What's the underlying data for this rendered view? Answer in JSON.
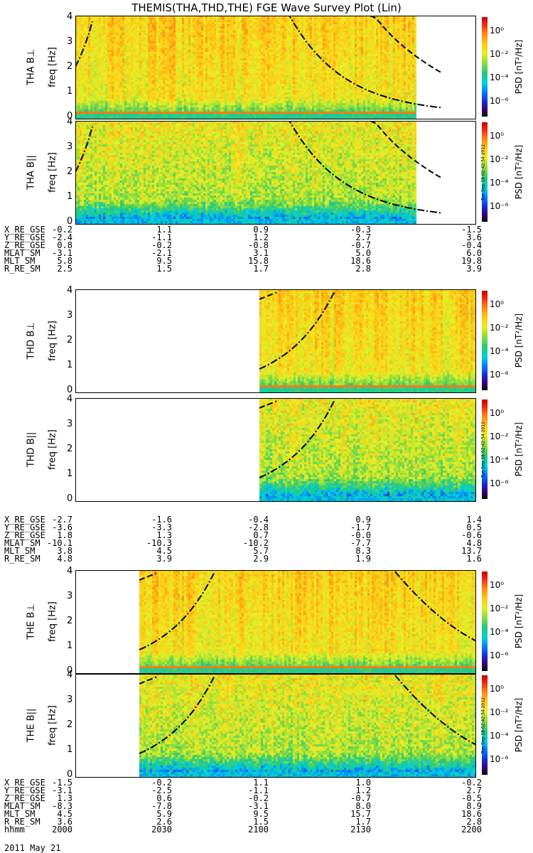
{
  "title": "THEMIS(THA,THD,THE) FGE Wave Survey Plot (Lin)",
  "timestamp_stamp": "Tue Sep 18 02:42:54 2012",
  "colorbar": {
    "label": "PSD [nT²/Hz]",
    "ticks": [
      "10⁰",
      "10⁻²",
      "10⁻⁴",
      "10⁻⁶"
    ]
  },
  "chart_data": [
    {
      "type": "heatmap",
      "name": "THA B⊥",
      "ylabel": "THA B⊥",
      "ylabel2": "freq [Hz]",
      "ylim": [
        0,
        4
      ],
      "yticks": [
        "4",
        "3",
        "2",
        "1",
        "0"
      ],
      "xrange": [
        0.0,
        0.85
      ],
      "clim": [
        -7,
        1
      ]
    },
    {
      "type": "heatmap",
      "name": "THA B||",
      "ylabel": "THA B||",
      "ylabel2": "freq [Hz]",
      "ylim": [
        0,
        4
      ],
      "yticks": [
        "4",
        "3",
        "2",
        "1",
        "0"
      ],
      "xrange": [
        0.0,
        0.85
      ],
      "clim": [
        -7,
        1
      ]
    },
    {
      "type": "heatmap",
      "name": "THD B⊥",
      "ylabel": "THD B⊥",
      "ylabel2": "freq [Hz]",
      "ylim": [
        0,
        4
      ],
      "yticks": [
        "4",
        "3",
        "2",
        "1",
        "0"
      ],
      "xrange": [
        0.46,
        1.0
      ],
      "clim": [
        -7,
        1
      ]
    },
    {
      "type": "heatmap",
      "name": "THD B||",
      "ylabel": "THD B||",
      "ylabel2": "freq [Hz]",
      "ylim": [
        0,
        4
      ],
      "yticks": [
        "4",
        "3",
        "2",
        "1",
        "0"
      ],
      "xrange": [
        0.46,
        1.0
      ],
      "clim": [
        -7,
        1
      ]
    },
    {
      "type": "heatmap",
      "name": "THE B⊥",
      "ylabel": "THE B⊥",
      "ylabel2": "freq [Hz]",
      "ylim": [
        0,
        4
      ],
      "yticks": [
        "4",
        "3",
        "2",
        "1",
        "0"
      ],
      "xrange": [
        0.16,
        1.0
      ],
      "clim": [
        -7,
        1
      ]
    },
    {
      "type": "heatmap",
      "name": "THE B||",
      "ylabel": "THE B||",
      "ylabel2": "freq [Hz]",
      "ylim": [
        0,
        4
      ],
      "yticks": [
        "4",
        "3",
        "2",
        "1",
        "0"
      ],
      "xrange": [
        0.16,
        1.0
      ],
      "clim": [
        -7,
        1
      ]
    }
  ],
  "ephemeris": [
    {
      "rows": [
        {
          "name": "X_RE_GSE",
          "values": [
            "-0.2",
            "1.1",
            "0.9",
            "-0.3",
            "-1.5"
          ]
        },
        {
          "name": "Y_RE_GSE",
          "values": [
            "-2.4",
            "-1.1",
            "1.2",
            "2.7",
            "3.6"
          ]
        },
        {
          "name": "Z_RE_GSE",
          "values": [
            "0.8",
            "-0.2",
            "-0.8",
            "-0.7",
            "-0.4"
          ]
        },
        {
          "name": "MLAT_SM",
          "values": [
            "-3.1",
            "-2.1",
            "3.1",
            "5.0",
            "6.0"
          ]
        },
        {
          "name": "MLT_SM",
          "values": [
            "5.8",
            "9.5",
            "15.8",
            "18.6",
            "19.8"
          ]
        },
        {
          "name": "R_RE_SM",
          "values": [
            "2.5",
            "1.5",
            "1.7",
            "2.8",
            "3.9"
          ]
        }
      ]
    },
    {
      "rows": [
        {
          "name": "X_RE_GSE",
          "values": [
            "-2.7",
            "-1.6",
            "-0.4",
            "0.9",
            "1.4"
          ]
        },
        {
          "name": "Y_RE_GSE",
          "values": [
            "-3.6",
            "-3.3",
            "-2.8",
            "-1.7",
            "0.5"
          ]
        },
        {
          "name": "Z_RE_GSE",
          "values": [
            "1.8",
            "1.3",
            "0.7",
            "-0.0",
            "-0.6"
          ]
        },
        {
          "name": "MLAT_SM",
          "values": [
            "-10.1",
            "-10.3",
            "-10.2",
            "-7.7",
            "4.8"
          ]
        },
        {
          "name": "MLT_SM",
          "values": [
            "3.8",
            "4.5",
            "5.7",
            "8.3",
            "13.7"
          ]
        },
        {
          "name": "R_RE_SM",
          "values": [
            "4.8",
            "3.9",
            "2.9",
            "1.9",
            "1.6"
          ]
        }
      ]
    },
    {
      "rows": [
        {
          "name": "X_RE_GSE",
          "values": [
            "-1.5",
            "-0.2",
            "1.1",
            "1.0",
            "-0.2"
          ]
        },
        {
          "name": "Y_RE_GSE",
          "values": [
            "-3.1",
            "-2.5",
            "-1.1",
            "1.2",
            "2.7"
          ]
        },
        {
          "name": "Z_RE_GSE",
          "values": [
            "1.3",
            "0.6",
            "-0.2",
            "-0.7",
            "-0.5"
          ]
        },
        {
          "name": "MLAT_SM",
          "values": [
            "-8.3",
            "-7.8",
            "-3.1",
            "8.0",
            "8.9"
          ]
        },
        {
          "name": "MLT_SM",
          "values": [
            "4.5",
            "5.9",
            "9.5",
            "15.7",
            "18.6"
          ]
        },
        {
          "name": "R_RE_SM",
          "values": [
            "3.6",
            "2.6",
            "1.5",
            "1.7",
            "2.8"
          ]
        },
        {
          "name": "hhmm",
          "values": [
            "2000",
            "2030",
            "2100",
            "2130",
            "2200"
          ]
        }
      ]
    }
  ],
  "date_label": "2011 May 21"
}
